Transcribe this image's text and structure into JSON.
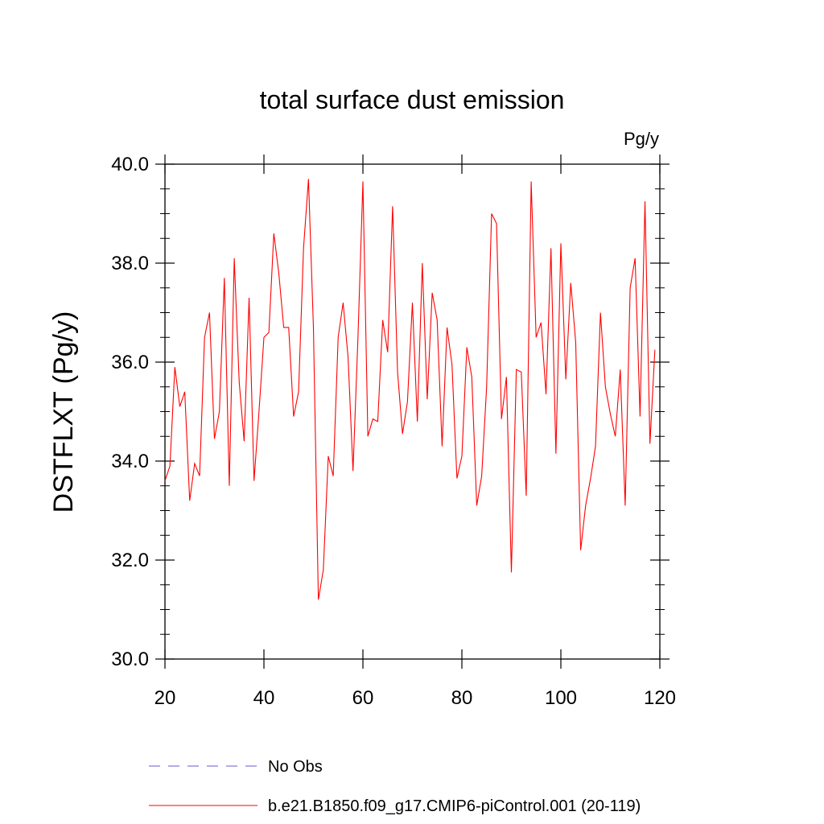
{
  "chart_data": {
    "type": "line",
    "title": "total surface dust emission",
    "units": "Pg/y",
    "ylabel": "DSTFLXT  (Pg/y)",
    "xlabel": "",
    "xlim": [
      20,
      120
    ],
    "ylim": [
      30.0,
      40.0
    ],
    "xticks": [
      20,
      40,
      60,
      80,
      100,
      120
    ],
    "xtick_labels": [
      "20",
      "40",
      "60",
      "80",
      "100",
      "120"
    ],
    "yticks": [
      30,
      32,
      34,
      36,
      38,
      40
    ],
    "ytick_labels": [
      "30.0",
      "32.0",
      "34.0",
      "36.0",
      "38.0",
      "40.0"
    ],
    "grid": false,
    "legend_position": "bottom",
    "series": [
      {
        "name": "No Obs",
        "color": "#6a5acd",
        "style": "dashed",
        "x": [],
        "values": []
      },
      {
        "name": "b.e21.B1850.f09_g17.CMIP6-piControl.001 (20-119)",
        "color": "#ff0000",
        "style": "solid",
        "x": [
          20,
          21,
          22,
          23,
          24,
          25,
          26,
          27,
          28,
          29,
          30,
          31,
          32,
          33,
          34,
          35,
          36,
          37,
          38,
          39,
          40,
          41,
          42,
          43,
          44,
          45,
          46,
          47,
          48,
          49,
          50,
          51,
          52,
          53,
          54,
          55,
          56,
          57,
          58,
          59,
          60,
          61,
          62,
          63,
          64,
          65,
          66,
          67,
          68,
          69,
          70,
          71,
          72,
          73,
          74,
          75,
          76,
          77,
          78,
          79,
          80,
          81,
          82,
          83,
          84,
          85,
          86,
          87,
          88,
          89,
          90,
          91,
          92,
          93,
          94,
          95,
          96,
          97,
          98,
          99,
          100,
          101,
          102,
          103,
          104,
          105,
          106,
          107,
          108,
          109,
          110,
          111,
          112,
          113,
          114,
          115,
          116,
          117,
          118,
          119
        ],
        "values": [
          33.6,
          33.9,
          35.9,
          35.1,
          35.4,
          33.2,
          33.95,
          33.7,
          36.5,
          37.0,
          34.45,
          35.0,
          37.7,
          33.5,
          38.1,
          35.6,
          34.4,
          37.3,
          33.6,
          35.0,
          36.5,
          36.6,
          38.6,
          37.8,
          36.7,
          36.7,
          34.9,
          35.4,
          38.3,
          39.7,
          36.7,
          31.2,
          31.8,
          34.1,
          33.7,
          36.5,
          37.2,
          36.1,
          33.8,
          36.5,
          39.65,
          34.5,
          34.85,
          34.8,
          36.85,
          36.2,
          39.15,
          35.8,
          34.55,
          35.2,
          37.2,
          34.8,
          38.0,
          35.25,
          37.4,
          36.85,
          34.3,
          36.7,
          35.95,
          33.65,
          34.1,
          36.3,
          35.7,
          33.1,
          33.7,
          35.5,
          39.0,
          38.8,
          34.85,
          35.7,
          31.75,
          35.85,
          35.8,
          33.3,
          39.65,
          36.5,
          36.8,
          35.35,
          38.3,
          34.15,
          38.4,
          35.65,
          37.6,
          36.4,
          32.2,
          33.1,
          33.65,
          34.3,
          37.0,
          35.5,
          34.95,
          34.5,
          35.85,
          33.1,
          37.5,
          38.1,
          34.9,
          39.25,
          34.35,
          36.25
        ]
      }
    ]
  }
}
